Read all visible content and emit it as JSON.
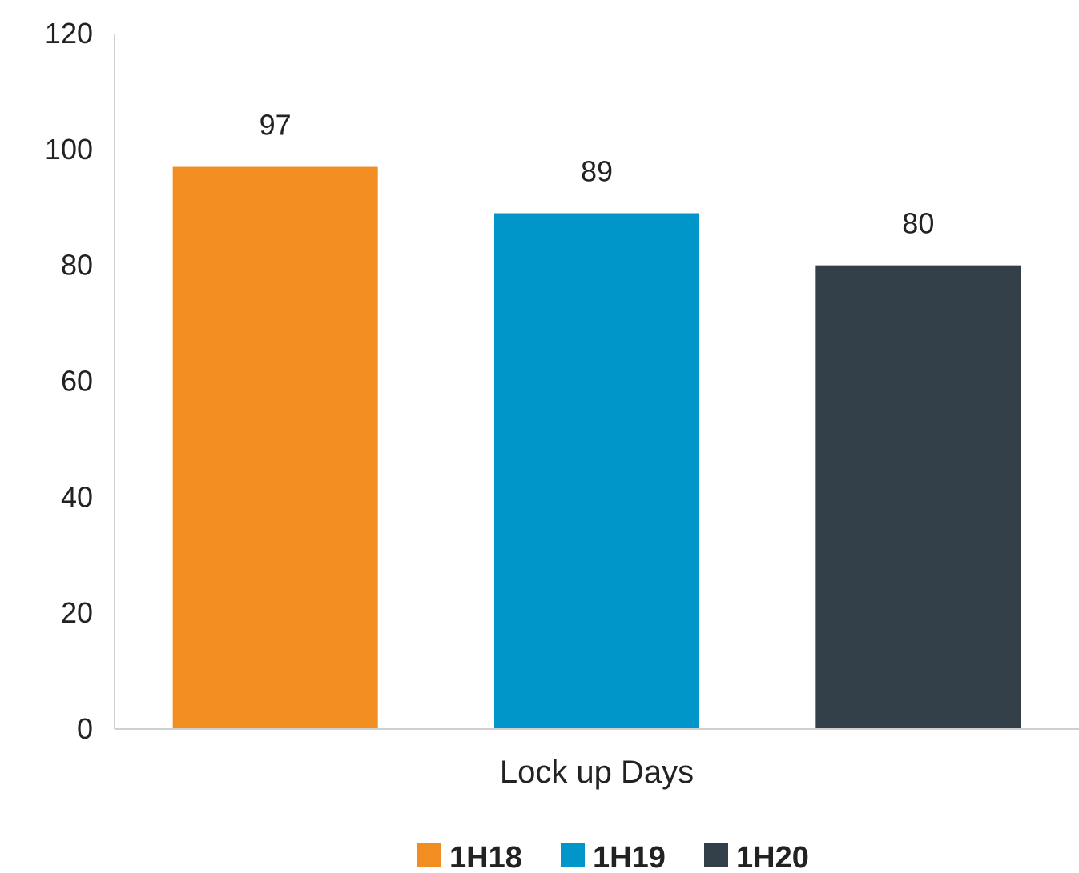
{
  "chart_data": {
    "type": "bar",
    "categories": [
      "Lock up Days"
    ],
    "series": [
      {
        "name": "1H18",
        "values": [
          97
        ],
        "color": "#F18D21"
      },
      {
        "name": "1H19",
        "values": [
          89
        ],
        "color": "#0096CA"
      },
      {
        "name": "1H20",
        "values": [
          80
        ],
        "color": "#333F48"
      }
    ],
    "ylim": [
      0,
      120
    ],
    "yticks": [
      0,
      20,
      40,
      60,
      80,
      100,
      120
    ],
    "title": "",
    "xlabel": "",
    "ylabel": "",
    "grid": false,
    "legend": "bottom-center",
    "data_labels": true
  }
}
